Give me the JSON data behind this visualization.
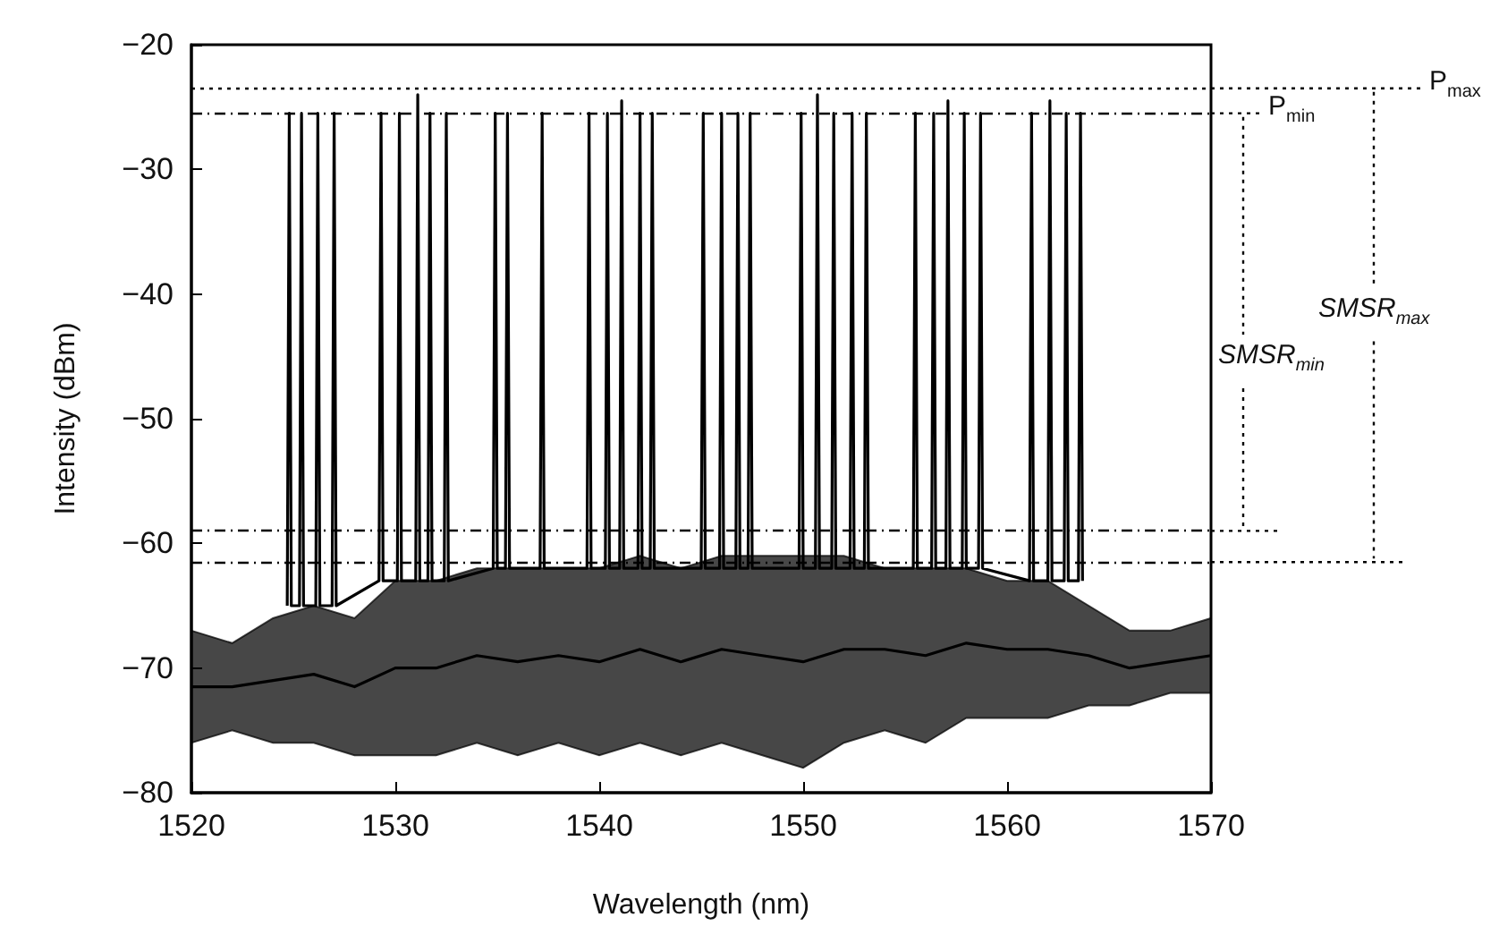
{
  "chart_data": {
    "type": "line",
    "xlabel": "Wavelength (nm)",
    "ylabel": "Intensity (dBm)",
    "xlim": [
      1520,
      1570
    ],
    "xticks": [
      1520,
      1530,
      1540,
      1550,
      1560,
      1570
    ],
    "ylim": [
      -80,
      -20
    ],
    "yticks": [
      -80,
      -70,
      -60,
      -50,
      -40,
      -30,
      -20
    ],
    "grid": false,
    "marker": "none",
    "series": [
      {
        "color": "#000000",
        "x": [
          1520,
          1522,
          1524,
          1526,
          1528,
          1530,
          1532,
          1534,
          1536,
          1538,
          1540,
          1542,
          1544,
          1546,
          1548,
          1550,
          1552,
          1554,
          1556,
          1558,
          1560,
          1562,
          1564,
          1566,
          1568,
          1570
        ],
        "values": [
          -71.5,
          -71.5,
          -71,
          -70.5,
          -71.5,
          -70,
          -70,
          -69,
          -69.5,
          -69,
          -69.5,
          -68.5,
          -69.5,
          -68.5,
          -69,
          -69.5,
          -68.5,
          -68.5,
          -69,
          -68,
          -68.5,
          -68.5,
          -69,
          -70,
          -69.5,
          -69
        ],
        "lower": [
          -76,
          -75,
          -76,
          -76,
          -77,
          -77,
          -77,
          -76,
          -77,
          -76,
          -77,
          -76,
          -77,
          -76,
          -77,
          -78,
          -76,
          -75,
          -76,
          -74,
          -74,
          -74,
          -73,
          -73,
          -72,
          -72
        ],
        "upper": [
          -67,
          -68,
          -66,
          -65,
          -66,
          -63,
          -63,
          -62,
          -62,
          -62,
          -62,
          -61,
          -62,
          -61,
          -61,
          -61,
          -61,
          -62,
          -62,
          -62,
          -63,
          -63,
          -65,
          -67,
          -67,
          -66
        ]
      },
      {
        "color": "#000000",
        "x": [
          1524.7,
          1524.8,
          1524.9,
          1525.3,
          1525.4,
          1525.5,
          1526.1,
          1526.2,
          1526.3,
          1526.9,
          1527.0,
          1527.1,
          1529.2,
          1529.3,
          1529.4,
          1530.1,
          1530.2,
          1530.3,
          1531.0,
          1531.1,
          1531.2,
          1531.6,
          1531.7,
          1531.8,
          1532.4,
          1532.5,
          1532.6,
          1534.8,
          1534.9,
          1535.0,
          1535.4,
          1535.5,
          1535.6,
          1537.1,
          1537.2,
          1537.3,
          1539.4,
          1539.5,
          1539.6,
          1540.3,
          1540.4,
          1540.5,
          1541.0,
          1541.1,
          1541.2,
          1541.9,
          1542.0,
          1542.1,
          1542.5,
          1542.6,
          1542.7,
          1545.0,
          1545.1,
          1545.2,
          1545.9,
          1546.0,
          1546.1,
          1546.7,
          1546.8,
          1546.9,
          1547.3,
          1547.4,
          1547.5,
          1549.8,
          1549.9,
          1550.0,
          1550.6,
          1550.7,
          1550.8,
          1551.4,
          1551.5,
          1551.6,
          1552.3,
          1552.4,
          1552.5,
          1553.0,
          1553.1,
          1553.2,
          1555.4,
          1555.5,
          1555.6,
          1556.3,
          1556.4,
          1556.5,
          1557.0,
          1557.1,
          1557.2,
          1557.8,
          1557.9,
          1558.0,
          1558.6,
          1558.7,
          1558.8,
          1561.1,
          1561.2,
          1561.3,
          1562.0,
          1562.1,
          1562.2,
          1562.8,
          1562.9,
          1563.0,
          1563.5,
          1563.6,
          1563.7
        ],
        "values": [
          -65,
          -25.5,
          -65,
          -65,
          -25.5,
          -65,
          -65,
          -25.5,
          -65,
          -65,
          -25.5,
          -65,
          -63,
          -25.5,
          -63,
          -63,
          -25.5,
          -63,
          -63,
          -24,
          -63,
          -63,
          -25.5,
          -63,
          -63,
          -25.5,
          -63,
          -62,
          -25.5,
          -62,
          -62,
          -25.5,
          -62,
          -62,
          -25.5,
          -62,
          -62,
          -25.5,
          -62,
          -62,
          -25.5,
          -62,
          -62,
          -24.5,
          -62,
          -62,
          -25.5,
          -62,
          -62,
          -25.5,
          -62,
          -62,
          -25.5,
          -62,
          -62,
          -25.5,
          -62,
          -62,
          -25.5,
          -62,
          -62,
          -25.5,
          -62,
          -62,
          -25.5,
          -62,
          -62,
          -24,
          -62,
          -62,
          -25.5,
          -62,
          -62,
          -25.5,
          -62,
          -62,
          -25.5,
          -62,
          -62,
          -25.5,
          -62,
          -62,
          -25.5,
          -62,
          -62,
          -24.5,
          -62,
          -62,
          -25.5,
          -62,
          -62,
          -25.5,
          -62,
          -63,
          -25.5,
          -63,
          -63,
          -24.5,
          -63,
          -63,
          -25.5,
          -63,
          -63,
          -25.5,
          -63
        ]
      }
    ],
    "ref_lines": [
      {
        "axis": "y",
        "value": -25.5,
        "label": "P$_{min}$",
        "line_style": "dashed",
        "color": "#000000"
      },
      {
        "axis": "y",
        "value": -23.5,
        "label": "P$_{max}$",
        "line_style": "dotted",
        "color": "#000000"
      },
      {
        "axis": "y",
        "value": -59,
        "label": null,
        "line_style": "dashed",
        "color": "#000000"
      },
      {
        "axis": "y",
        "value": -61.5,
        "label": null,
        "line_style": "dashed",
        "color": "#000000"
      }
    ],
    "annotations": [
      "SMSR$_{min}$",
      "SMSR$_{max}$"
    ]
  }
}
